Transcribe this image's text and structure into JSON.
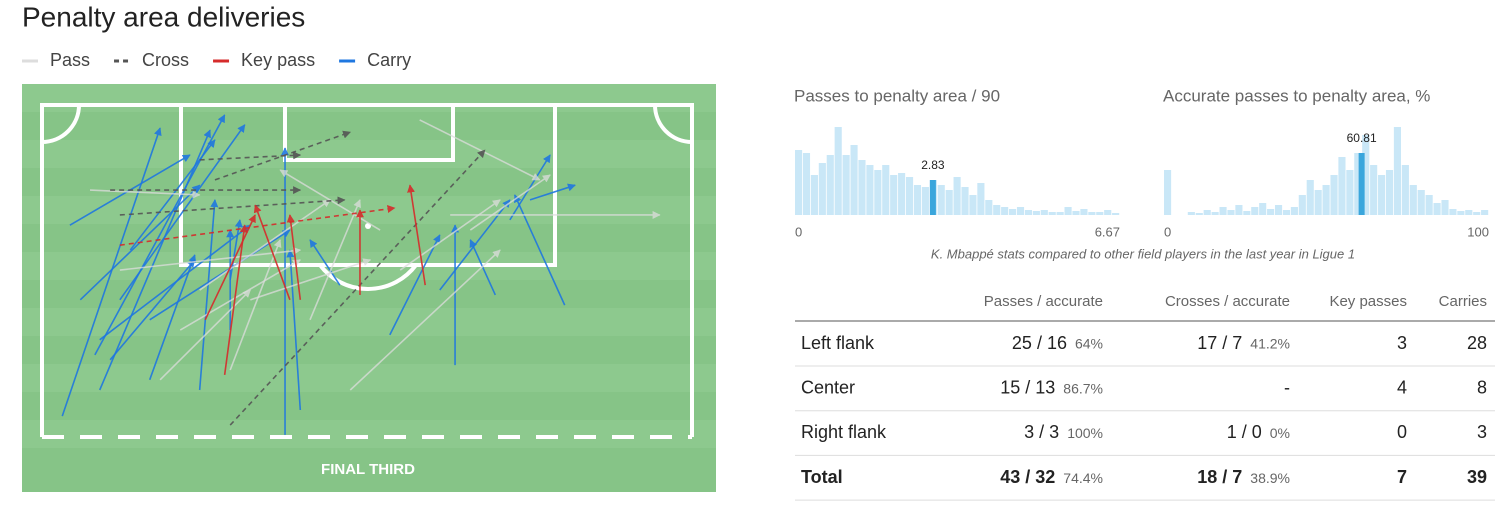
{
  "title": "Penalty area deliveries",
  "legend": [
    {
      "name": "Pass",
      "color": "#dddddd",
      "dash": false
    },
    {
      "name": "Cross",
      "color": "#555555",
      "dash": true
    },
    {
      "name": "Key pass",
      "color": "#d62b2b",
      "dash": false
    },
    {
      "name": "Carry",
      "color": "#1f77e0",
      "dash": false
    }
  ],
  "pitch": {
    "label": "FINAL THIRD",
    "arrows": [
      {
        "kind": 3,
        "from": [
          5.8,
          81.4
        ],
        "to": [
          19.9,
          10.8
        ]
      },
      {
        "kind": 3,
        "from": [
          10.5,
          66.4
        ],
        "to": [
          29.2,
          7.6
        ]
      },
      {
        "kind": 3,
        "from": [
          11.2,
          75
        ],
        "to": [
          27.1,
          11.3
        ]
      },
      {
        "kind": 3,
        "from": [
          14.1,
          52.9
        ],
        "to": [
          32.1,
          10
        ]
      },
      {
        "kind": 3,
        "from": [
          6.9,
          34.6
        ],
        "to": [
          24.2,
          17.4
        ]
      },
      {
        "kind": 3,
        "from": [
          11.2,
          62.7
        ],
        "to": [
          32.9,
          34.6
        ]
      },
      {
        "kind": 3,
        "from": [
          18.4,
          57.8
        ],
        "to": [
          38.6,
          35.8
        ]
      },
      {
        "kind": 3,
        "from": [
          25.6,
          75
        ],
        "to": [
          27.8,
          28.4
        ]
      },
      {
        "kind": 3,
        "from": [
          37.9,
          86
        ],
        "to": [
          37.9,
          15.7
        ]
      },
      {
        "kind": 3,
        "from": [
          40.1,
          79.9
        ],
        "to": [
          38.6,
          40.7
        ]
      },
      {
        "kind": 3,
        "from": [
          53,
          61.5
        ],
        "to": [
          60.2,
          37
        ]
      },
      {
        "kind": 3,
        "from": [
          60.2,
          50.5
        ],
        "to": [
          70.3,
          28.4
        ]
      },
      {
        "kind": 3,
        "from": [
          62.4,
          68.9
        ],
        "to": [
          62.4,
          34.6
        ]
      },
      {
        "kind": 3,
        "from": [
          68.2,
          51.7
        ],
        "to": [
          64.6,
          38.2
        ]
      },
      {
        "kind": 3,
        "from": [
          78.2,
          54.2
        ],
        "to": [
          71,
          27.2
        ]
      },
      {
        "kind": 3,
        "from": [
          70.3,
          33.3
        ],
        "to": [
          76.1,
          17.4
        ]
      },
      {
        "kind": 3,
        "from": [
          73.2,
          28.4
        ],
        "to": [
          79.7,
          24.8
        ]
      },
      {
        "kind": 3,
        "from": [
          30,
          48
        ],
        "to": [
          31.4,
          33.3
        ]
      },
      {
        "kind": 3,
        "from": [
          12.7,
          67.6
        ],
        "to": [
          24.9,
          43.1
        ]
      },
      {
        "kind": 3,
        "from": [
          15.6,
          40.7
        ],
        "to": [
          27.8,
          13.7
        ]
      },
      {
        "kind": 3,
        "from": [
          45.8,
          49.3
        ],
        "to": [
          41.5,
          38.2
        ]
      },
      {
        "kind": 3,
        "from": [
          30,
          60.3
        ],
        "to": [
          30,
          35.8
        ]
      },
      {
        "kind": 3,
        "from": [
          8.4,
          52.9
        ],
        "to": [
          25.6,
          24.8
        ]
      },
      {
        "kind": 3,
        "from": [
          18.4,
          72.5
        ],
        "to": [
          24.9,
          41.9
        ]
      },
      {
        "kind": 0,
        "from": [
          9.8,
          26
        ],
        "to": [
          25.6,
          27.2
        ]
      },
      {
        "kind": 0,
        "from": [
          57.3,
          8.8
        ],
        "to": [
          74.6,
          23.5
        ]
      },
      {
        "kind": 0,
        "from": [
          61.7,
          32.1
        ],
        "to": [
          91.9,
          32.1
        ]
      },
      {
        "kind": 0,
        "from": [
          64.6,
          35.8
        ],
        "to": [
          76.1,
          22.3
        ]
      },
      {
        "kind": 0,
        "from": [
          25.6,
          50.5
        ],
        "to": [
          44.4,
          28.4
        ]
      },
      {
        "kind": 0,
        "from": [
          30,
          70.1
        ],
        "to": [
          37.2,
          38.2
        ]
      },
      {
        "kind": 0,
        "from": [
          47.3,
          75
        ],
        "to": [
          68.9,
          40.7
        ]
      },
      {
        "kind": 0,
        "from": [
          22.8,
          60.3
        ],
        "to": [
          40.1,
          43.1
        ]
      },
      {
        "kind": 0,
        "from": [
          32.9,
          52.9
        ],
        "to": [
          50.2,
          43.1
        ]
      },
      {
        "kind": 0,
        "from": [
          51.6,
          35.8
        ],
        "to": [
          37.2,
          21.1
        ]
      },
      {
        "kind": 0,
        "from": [
          41.5,
          57.8
        ],
        "to": [
          48.7,
          28.4
        ]
      },
      {
        "kind": 0,
        "from": [
          19.9,
          72.5
        ],
        "to": [
          32.9,
          50.5
        ]
      },
      {
        "kind": 0,
        "from": [
          54.5,
          45.6
        ],
        "to": [
          68.9,
          28.4
        ]
      },
      {
        "kind": 0,
        "from": [
          14.1,
          45.6
        ],
        "to": [
          40.1,
          40.7
        ]
      },
      {
        "kind": 1,
        "from": [
          12.7,
          26
        ],
        "to": [
          40.1,
          26
        ]
      },
      {
        "kind": 1,
        "from": [
          14.1,
          32.1
        ],
        "to": [
          46.5,
          28.4
        ]
      },
      {
        "kind": 1,
        "from": [
          27.8,
          23.5
        ],
        "to": [
          47.3,
          11.8
        ]
      },
      {
        "kind": 1,
        "from": [
          30,
          83.6
        ],
        "to": [
          66.7,
          16.2
        ]
      },
      {
        "kind": 1,
        "from": [
          25.6,
          18.6
        ],
        "to": [
          40.1,
          17.4
        ]
      },
      {
        "kind": 2,
        "dash": true,
        "from": [
          14.1,
          39.5
        ],
        "to": [
          53.7,
          30.4
        ]
      },
      {
        "kind": 2,
        "from": [
          29.2,
          71.3
        ],
        "to": [
          32.1,
          34.6
        ]
      },
      {
        "kind": 2,
        "from": [
          38.6,
          52.9
        ],
        "to": [
          33.6,
          29.7
        ]
      },
      {
        "kind": 2,
        "from": [
          48.7,
          51.7
        ],
        "to": [
          48.7,
          30.9
        ]
      },
      {
        "kind": 2,
        "from": [
          58.1,
          49.3
        ],
        "to": [
          55.9,
          24.8
        ]
      },
      {
        "kind": 2,
        "from": [
          26.4,
          57.8
        ],
        "to": [
          33.6,
          32.1
        ]
      },
      {
        "kind": 2,
        "from": [
          40.1,
          52.9
        ],
        "to": [
          38.6,
          32.1
        ]
      }
    ]
  },
  "histograms": [
    {
      "title": "Passes to penalty area / 90",
      "xlim": [
        0,
        6.67
      ],
      "xticks": [
        0,
        6.67
      ],
      "highlight": 2.83,
      "counts": [
        65,
        62,
        40,
        52,
        60,
        88,
        60,
        70,
        55,
        50,
        45,
        50,
        40,
        42,
        38,
        30,
        28,
        35,
        30,
        25,
        38,
        28,
        20,
        32,
        15,
        10,
        8,
        6,
        8,
        5,
        4,
        5,
        3,
        3,
        8,
        4,
        6,
        3,
        3,
        5,
        2
      ]
    },
    {
      "title": "Accurate passes to penalty area, %",
      "xlim": [
        0,
        100
      ],
      "xticks": [
        0,
        100
      ],
      "highlight": 60.81,
      "counts": [
        45,
        0,
        0,
        3,
        2,
        5,
        3,
        8,
        5,
        10,
        4,
        8,
        12,
        6,
        10,
        5,
        8,
        20,
        35,
        25,
        30,
        40,
        58,
        45,
        62,
        80,
        50,
        40,
        45,
        88,
        50,
        30,
        25,
        20,
        12,
        15,
        6,
        4,
        5,
        3,
        5
      ]
    }
  ],
  "caption": "K. Mbappé stats compared to other field players in the last year in Ligue 1",
  "table": {
    "columns": [
      "Passes / accurate",
      "Crosses / accurate",
      "Key passes",
      "Carries"
    ],
    "rows": [
      {
        "label": "Left flank",
        "passes": "25 / 16",
        "passes_pct": "64%",
        "crosses": "17 / 7",
        "crosses_pct": "41.2%",
        "key": "3",
        "carries": "28"
      },
      {
        "label": "Center",
        "passes": "15 / 13",
        "passes_pct": "86.7%",
        "crosses": "-",
        "crosses_pct": null,
        "key": "4",
        "carries": "8"
      },
      {
        "label": "Right flank",
        "passes": "3 / 3",
        "passes_pct": "100%",
        "crosses": "1 / 0",
        "crosses_pct": "0%",
        "key": "0",
        "carries": "3"
      },
      {
        "label": "Total",
        "passes": "43 / 32",
        "passes_pct": "74.4%",
        "crosses": "18 / 7",
        "crosses_pct": "38.9%",
        "key": "7",
        "carries": "39"
      }
    ]
  }
}
